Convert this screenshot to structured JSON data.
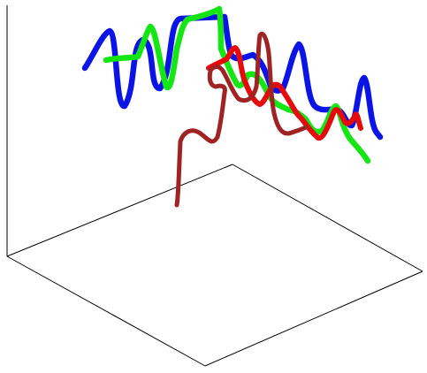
{
  "chart_data": {
    "type": "line",
    "projection": "3d",
    "title": "",
    "xlabel": "",
    "ylabel": "",
    "zlabel": "",
    "grid": false,
    "legend": "none",
    "colors": {
      "blue": "#0a14e6",
      "green": "#14e614",
      "red": "#e60a0a",
      "brown": "#a02323",
      "axes": "#000000"
    }
  }
}
